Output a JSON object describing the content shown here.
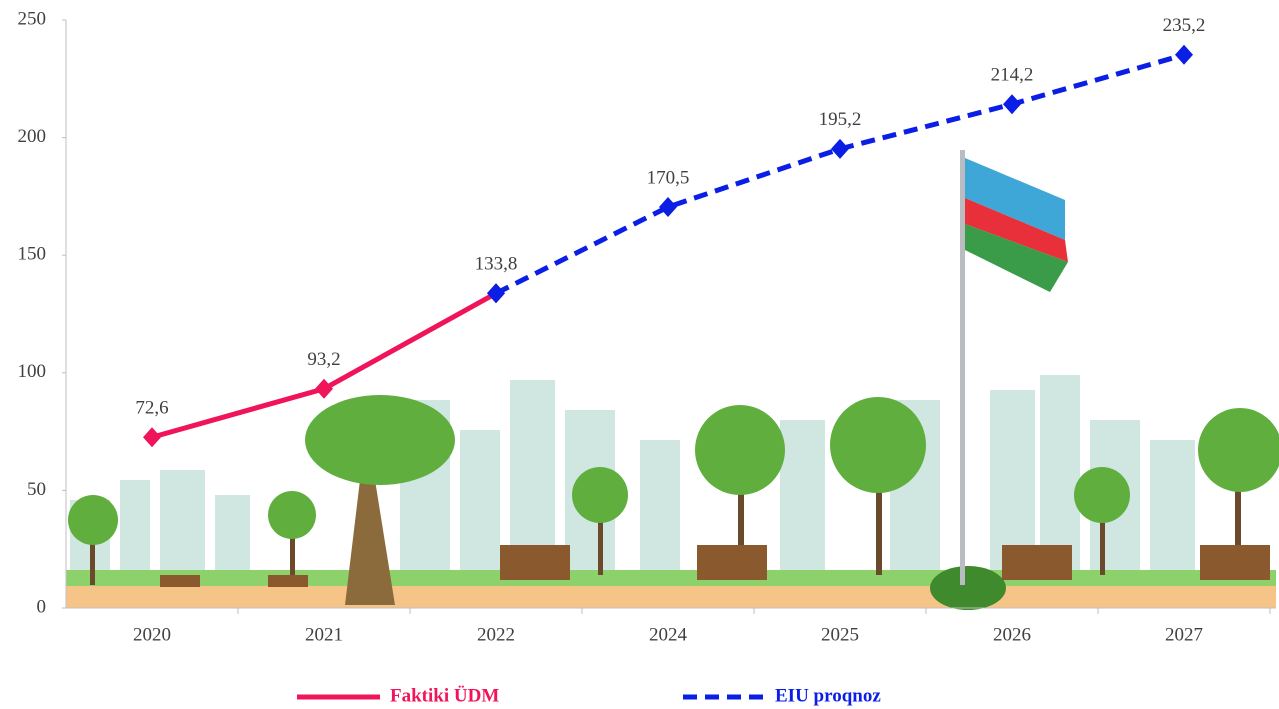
{
  "chart_data": {
    "type": "line",
    "categories": [
      "2020",
      "2021",
      "2022",
      "2024",
      "2025",
      "2026",
      "2027"
    ],
    "series": [
      {
        "name": "Faktiki ÜDM",
        "color": "#f0145a",
        "dash": false,
        "values": [
          72.6,
          93.2,
          133.8,
          null,
          null,
          null,
          null
        ],
        "value_labels": [
          "72,6",
          "93,2",
          "133,8",
          null,
          null,
          null,
          null
        ]
      },
      {
        "name": "EIU proqnoz",
        "color": "#0a1ee6",
        "dash": true,
        "values": [
          null,
          null,
          133.8,
          170.5,
          195.2,
          214.2,
          235.2
        ],
        "value_labels": [
          null,
          null,
          null,
          "170,5",
          "195,2",
          "214,2",
          "235,2"
        ]
      }
    ],
    "ylim": [
      0,
      250
    ],
    "yticks": [
      0,
      50,
      100,
      150,
      200,
      250
    ],
    "grid": false
  }
}
